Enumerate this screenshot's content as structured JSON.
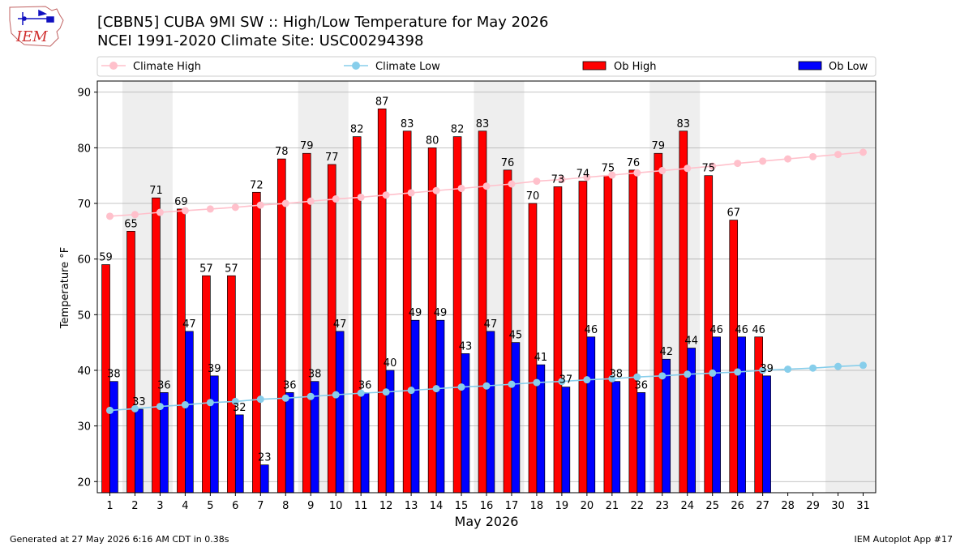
{
  "header": {
    "title_line1": "[CBBN5] CUBA 9MI SW :: High/Low Temperature for May 2026",
    "title_line2": "NCEI 1991-2020 Climate Site: USC00294398"
  },
  "logo": {
    "text": "IEM"
  },
  "footer": {
    "left": "Generated at 27 May 2026 6:16 AM CDT in 0.38s",
    "right": "IEM Autoplot App #17"
  },
  "colors": {
    "ob_high": "#ff0000",
    "ob_low": "#0000ff",
    "climate_high": "#ffc0cb",
    "climate_low": "#87ceeb",
    "weekend_shade": "#eeeeee",
    "grid": "#b0b0b0"
  },
  "chart_data": {
    "type": "bar",
    "xlabel": "May 2026",
    "ylabel": "Temperature °F",
    "ylim": [
      18,
      92
    ],
    "xlim": [
      0.5,
      31.5
    ],
    "yticks": [
      20,
      30,
      40,
      50,
      60,
      70,
      80,
      90
    ],
    "grid": "horizontal",
    "legend_position": "top",
    "shaded_weekend_spans": [
      [
        1.5,
        3.5
      ],
      [
        8.5,
        10.5
      ],
      [
        15.5,
        17.5
      ],
      [
        22.5,
        24.5
      ],
      [
        29.5,
        31.5
      ]
    ],
    "days": [
      1,
      2,
      3,
      4,
      5,
      6,
      7,
      8,
      9,
      10,
      11,
      12,
      13,
      14,
      15,
      16,
      17,
      18,
      19,
      20,
      21,
      22,
      23,
      24,
      25,
      26,
      27,
      28,
      29,
      30,
      31
    ],
    "series": [
      {
        "name": "Climate High",
        "kind": "line",
        "values": [
          67.7,
          68.0,
          68.4,
          68.7,
          69.0,
          69.3,
          69.7,
          70.0,
          70.4,
          70.8,
          71.1,
          71.5,
          71.9,
          72.3,
          72.7,
          73.1,
          73.5,
          74.0,
          74.3,
          74.7,
          75.1,
          75.5,
          75.9,
          76.3,
          76.7,
          77.2,
          77.6,
          78.0,
          78.4,
          78.8,
          79.2
        ]
      },
      {
        "name": "Climate Low",
        "kind": "line",
        "values": [
          32.8,
          33.1,
          33.5,
          33.8,
          34.2,
          34.4,
          34.8,
          35.0,
          35.3,
          35.6,
          35.9,
          36.1,
          36.4,
          36.7,
          37.0,
          37.2,
          37.5,
          37.8,
          38.0,
          38.3,
          38.5,
          38.8,
          39.0,
          39.3,
          39.5,
          39.7,
          40.0,
          40.2,
          40.4,
          40.7,
          40.9
        ]
      },
      {
        "name": "Ob High",
        "kind": "bar",
        "values": [
          59,
          65,
          71,
          69,
          57,
          57,
          72,
          78,
          79,
          77,
          82,
          87,
          83,
          80,
          82,
          83,
          76,
          70,
          73,
          74,
          75,
          76,
          79,
          83,
          75,
          67,
          46,
          null,
          null,
          null,
          null
        ]
      },
      {
        "name": "Ob Low",
        "kind": "bar",
        "values": [
          38,
          33,
          36,
          47,
          39,
          32,
          23,
          36,
          38,
          47,
          36,
          40,
          49,
          49,
          43,
          47,
          45,
          41,
          37,
          46,
          38,
          36,
          42,
          44,
          46,
          46,
          39,
          null,
          null,
          null,
          null
        ]
      }
    ]
  }
}
